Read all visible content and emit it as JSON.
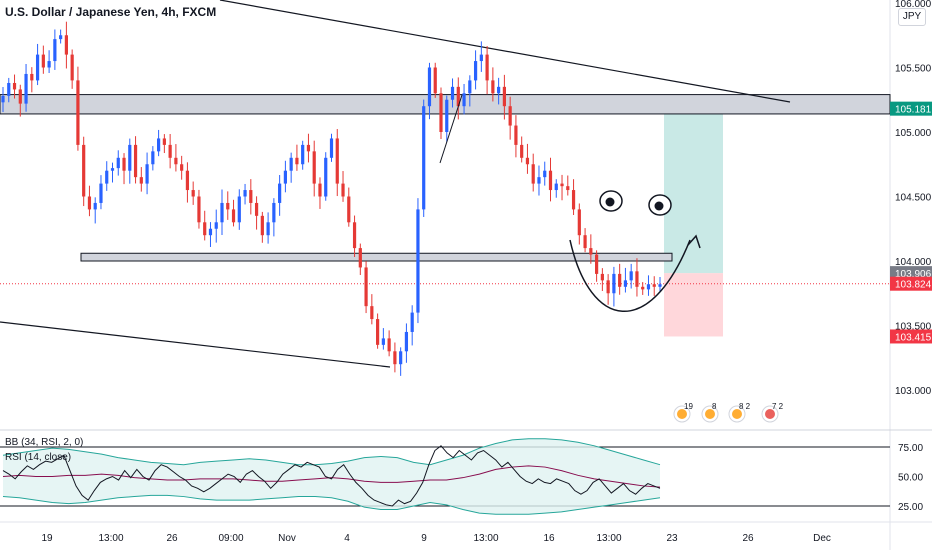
{
  "header": {
    "title": "U.S. Dollar / Japanese Yen, 4h, FXCM",
    "currency": "JPY"
  },
  "indicators": {
    "bb_label": "BB (34, RSI, 2, 0)",
    "rsi_label": "RSI (14, close)"
  },
  "price_axis": {
    "ticks": [
      "106.000",
      "105.500",
      "105.000",
      "104.500",
      "104.000",
      "103.500",
      "103.000"
    ],
    "labels": [
      {
        "text": "105.181",
        "bg": "#089981"
      },
      {
        "text": "103.906",
        "bg": "#787b86"
      },
      {
        "text": "103.824",
        "bg": "#f23645"
      },
      {
        "text": "103.415",
        "bg": "#f23645"
      }
    ]
  },
  "rsi_axis": {
    "ticks": [
      "75.00",
      "50.00",
      "25.00"
    ]
  },
  "time_axis": {
    "ticks": [
      "19",
      "13:00",
      "26",
      "09:00",
      "Nov",
      "4",
      "9",
      "13:00",
      "16",
      "13:00",
      "23",
      "26",
      "Dec"
    ]
  },
  "event_badges": {
    "counts": [
      "19",
      "8",
      "8 2",
      "7 2"
    ]
  },
  "colors": {
    "up_candle": "#2962ff",
    "down_candle": "#e53935",
    "zone_fill": "#d1d4dc",
    "target_fill": "#b2dfdb",
    "stop_fill": "#ffcdd2",
    "bb_band": "#26a69a",
    "bb_basis": "#880e4f",
    "rsi_line": "#131722"
  },
  "chart_data": [
    {
      "type": "candlestick",
      "symbol": "USDJPY",
      "timeframe": "4h",
      "source": "FXCM",
      "ylim": [
        102.85,
        106.1
      ],
      "resistance_zone": [
        105.14,
        105.29
      ],
      "support_zone": [
        104.0,
        104.06
      ],
      "position": {
        "direction": "long",
        "entry": 103.906,
        "target": 105.181,
        "stop": 103.415
      },
      "last_price": 103.824,
      "closes": [
        105.28,
        105.38,
        105.33,
        105.22,
        105.45,
        105.4,
        105.6,
        105.5,
        105.55,
        105.72,
        105.75,
        105.6,
        105.4,
        104.9,
        104.5,
        104.4,
        104.45,
        104.6,
        104.7,
        104.72,
        104.8,
        104.7,
        104.9,
        104.65,
        104.6,
        104.75,
        104.85,
        104.95,
        104.9,
        104.8,
        104.75,
        104.7,
        104.55,
        104.5,
        104.3,
        104.2,
        104.25,
        104.3,
        104.45,
        104.4,
        104.3,
        104.5,
        104.55,
        104.45,
        104.35,
        104.2,
        104.3,
        104.45,
        104.6,
        104.7,
        104.8,
        104.75,
        104.9,
        104.85,
        104.6,
        104.5,
        104.8,
        104.95,
        104.6,
        104.5,
        104.3,
        104.1,
        103.95,
        103.65,
        103.55,
        103.35,
        103.4,
        103.3,
        103.2,
        103.3,
        103.45,
        103.6,
        104.4,
        105.2,
        105.5,
        105.3,
        105.0,
        105.25,
        105.35,
        105.2,
        105.3,
        105.4,
        105.55,
        105.6,
        105.4,
        105.3,
        105.35,
        105.2,
        105.05,
        104.9,
        104.8,
        104.75,
        104.6,
        104.65,
        104.7,
        104.55,
        104.6,
        104.58,
        104.55,
        104.4,
        104.2,
        104.1,
        104.05,
        103.9,
        103.85,
        103.75,
        103.9,
        103.8,
        103.85,
        103.92,
        103.8,
        103.78,
        103.82,
        103.8,
        103.82
      ],
      "rsi": {
        "ylim": [
          15,
          85
        ],
        "ticks": [
          75,
          50,
          25
        ],
        "rsi": [
          55,
          52,
          48,
          54,
          59,
          56,
          60,
          63,
          62,
          65,
          68,
          55,
          42,
          34,
          30,
          38,
          45,
          48,
          50,
          47,
          55,
          49,
          56,
          50,
          47,
          55,
          60,
          58,
          54,
          50,
          47,
          42,
          40,
          37,
          40,
          44,
          48,
          52,
          50,
          45,
          52,
          55,
          50,
          46,
          40,
          45,
          52,
          56,
          60,
          58,
          62,
          60,
          58,
          50,
          48,
          56,
          60,
          52,
          45,
          40,
          34,
          30,
          28,
          26,
          25,
          30,
          27,
          29,
          36,
          45,
          60,
          72,
          76,
          70,
          66,
          72,
          68,
          64,
          70,
          72,
          68,
          64,
          58,
          62,
          56,
          50,
          46,
          44,
          48,
          45,
          44,
          48,
          46,
          44,
          38,
          35,
          38,
          45,
          48,
          42,
          36,
          40,
          44,
          38,
          35,
          40,
          44,
          42,
          40
        ],
        "bb_upper": [
          68,
          70,
          72,
          74,
          73,
          71,
          69,
          66,
          64,
          62,
          61,
          60,
          62,
          63,
          64,
          65,
          64,
          62,
          60,
          60,
          61,
          63,
          66,
          67,
          66,
          62,
          60,
          64,
          68,
          74,
          78,
          81,
          82,
          82,
          81,
          79,
          76,
          72,
          68,
          64,
          60
        ],
        "bb_lower": [
          33,
          32,
          30,
          28,
          27,
          28,
          30,
          32,
          33,
          34,
          34,
          33,
          31,
          30,
          30,
          30,
          31,
          32,
          33,
          33,
          32,
          29,
          24,
          22,
          22,
          25,
          28,
          26,
          22,
          19,
          18,
          18,
          18,
          19,
          20,
          22,
          24,
          26,
          28,
          30,
          32
        ],
        "bb_basis": [
          50,
          51,
          50,
          50,
          51,
          51,
          52,
          51,
          49,
          48,
          47,
          47,
          48,
          48,
          48,
          47,
          46,
          46,
          47,
          48,
          49,
          48,
          46,
          45,
          45,
          46,
          47,
          47,
          49,
          52,
          56,
          58,
          59,
          58,
          55,
          51,
          48,
          46,
          44,
          42,
          41
        ]
      }
    }
  ]
}
